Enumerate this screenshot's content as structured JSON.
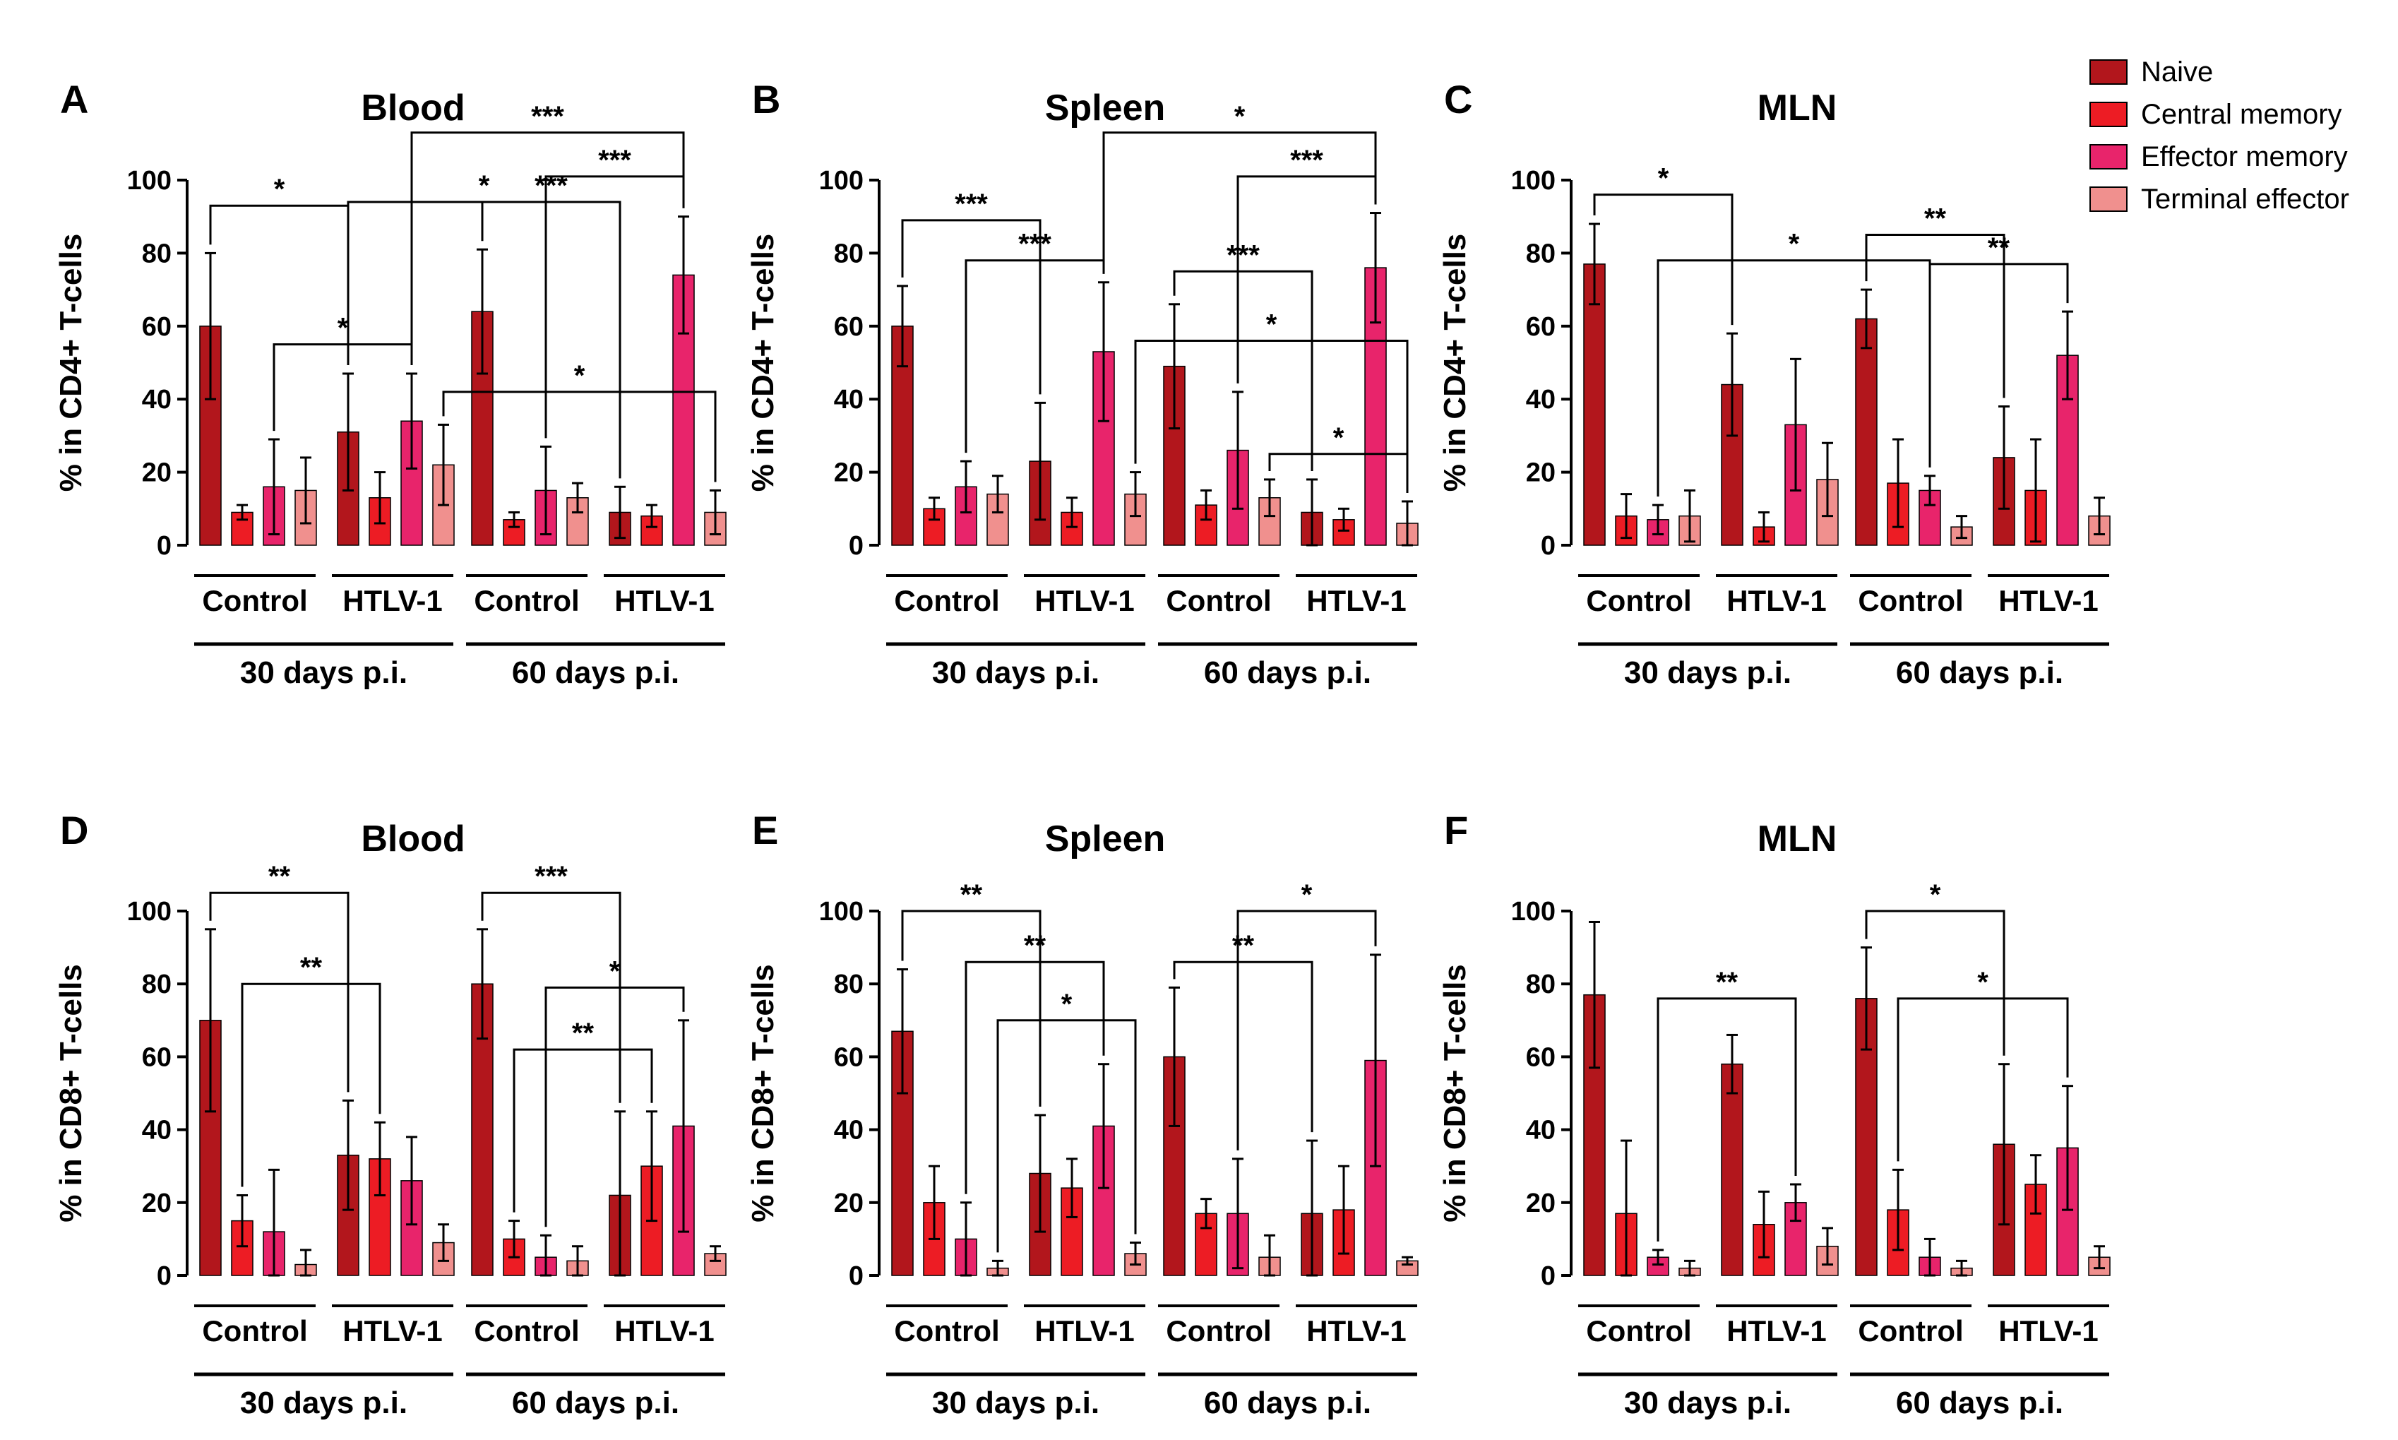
{
  "colors": {
    "naive": "#B2161C",
    "central_memory": "#ED1C24",
    "effector_memory": "#E8246B",
    "terminal_effector": "#F0908E",
    "text": "#000000"
  },
  "legend": [
    {
      "label": "Naive",
      "color": "#B2161C"
    },
    {
      "label": "Central memory",
      "color": "#ED1C24"
    },
    {
      "label": "Effector memory",
      "color": "#E8246B"
    },
    {
      "label": "Terminal effector",
      "color": "#F0908E"
    }
  ],
  "chart_data": [
    {
      "type": "bar",
      "panel": "A",
      "title": "Blood",
      "ylabel": "% in CD4+ T-cells",
      "ylim": [
        0,
        100
      ],
      "yticks": [
        "0",
        "20",
        "40",
        "60",
        "80",
        "100"
      ],
      "groups": [
        "Control",
        "HTLV-1",
        "Control",
        "HTLV-1"
      ],
      "timepoints": [
        "30 days p.i.",
        "60 days p.i."
      ],
      "series": [
        {
          "name": "Naive",
          "values": [
            60,
            31,
            64,
            9
          ],
          "errors": [
            20,
            16,
            17,
            7
          ]
        },
        {
          "name": "Central memory",
          "values": [
            9,
            13,
            7,
            8
          ],
          "errors": [
            2,
            7,
            2,
            3
          ]
        },
        {
          "name": "Effector memory",
          "values": [
            16,
            34,
            15,
            74
          ],
          "errors": [
            13,
            13,
            12,
            16
          ]
        },
        {
          "name": "Terminal effector",
          "values": [
            15,
            22,
            13,
            9
          ],
          "errors": [
            9,
            11,
            4,
            6
          ]
        }
      ],
      "significance": [
        {
          "label": "*",
          "from": [
            0,
            0
          ],
          "to": [
            1,
            0
          ],
          "y": 93
        },
        {
          "label": "*",
          "from": [
            0,
            2
          ],
          "to": [
            1,
            2
          ],
          "y": 55
        },
        {
          "label": "*",
          "from": [
            1,
            0
          ],
          "to": [
            3,
            0
          ],
          "y": 94
        },
        {
          "label": "*",
          "from": [
            1,
            3
          ],
          "to": [
            3,
            3
          ],
          "y": 42
        },
        {
          "label": "***",
          "from": [
            1,
            2
          ],
          "to": [
            3,
            2
          ],
          "y": 113
        },
        {
          "label": "***",
          "from": [
            2,
            0
          ],
          "to": [
            3,
            0
          ],
          "y": 94
        },
        {
          "label": "***",
          "from": [
            2,
            2
          ],
          "to": [
            3,
            2
          ],
          "y": 101
        }
      ]
    },
    {
      "type": "bar",
      "panel": "B",
      "title": "Spleen",
      "ylabel": "% in CD4+ T-cells",
      "ylim": [
        0,
        100
      ],
      "yticks": [
        "0",
        "20",
        "40",
        "60",
        "80",
        "100"
      ],
      "groups": [
        "Control",
        "HTLV-1",
        "Control",
        "HTLV-1"
      ],
      "timepoints": [
        "30 days p.i.",
        "60 days p.i."
      ],
      "series": [
        {
          "name": "Naive",
          "values": [
            60,
            23,
            49,
            9
          ],
          "errors": [
            11,
            16,
            17,
            9
          ]
        },
        {
          "name": "Central memory",
          "values": [
            10,
            9,
            11,
            7
          ],
          "errors": [
            3,
            4,
            4,
            3
          ]
        },
        {
          "name": "Effector memory",
          "values": [
            16,
            53,
            26,
            76
          ],
          "errors": [
            7,
            19,
            16,
            15
          ]
        },
        {
          "name": "Terminal effector",
          "values": [
            14,
            14,
            13,
            6
          ],
          "errors": [
            5,
            6,
            5,
            6
          ]
        }
      ],
      "significance": [
        {
          "label": "***",
          "from": [
            0,
            0
          ],
          "to": [
            1,
            0
          ],
          "y": 89
        },
        {
          "label": "***",
          "from": [
            0,
            2
          ],
          "to": [
            1,
            2
          ],
          "y": 78
        },
        {
          "label": "*",
          "from": [
            1,
            2
          ],
          "to": [
            3,
            2
          ],
          "y": 113
        },
        {
          "label": "*",
          "from": [
            1,
            3
          ],
          "to": [
            3,
            3
          ],
          "y": 56
        },
        {
          "label": "***",
          "from": [
            2,
            0
          ],
          "to": [
            3,
            0
          ],
          "y": 75
        },
        {
          "label": "***",
          "from": [
            2,
            2
          ],
          "to": [
            3,
            2
          ],
          "y": 101
        },
        {
          "label": "*",
          "from": [
            2,
            3
          ],
          "to": [
            3,
            3
          ],
          "y": 25
        }
      ]
    },
    {
      "type": "bar",
      "panel": "C",
      "title": "MLN",
      "ylabel": "% in CD4+ T-cells",
      "ylim": [
        0,
        100
      ],
      "yticks": [
        "0",
        "20",
        "40",
        "60",
        "80",
        "100"
      ],
      "groups": [
        "Control",
        "HTLV-1",
        "Control",
        "HTLV-1"
      ],
      "timepoints": [
        "30 days p.i.",
        "60 days p.i."
      ],
      "series": [
        {
          "name": "Naive",
          "values": [
            77,
            44,
            62,
            24
          ],
          "errors": [
            11,
            14,
            8,
            14
          ]
        },
        {
          "name": "Central memory",
          "values": [
            8,
            5,
            17,
            15
          ],
          "errors": [
            6,
            4,
            12,
            14
          ]
        },
        {
          "name": "Effector memory",
          "values": [
            7,
            33,
            15,
            52
          ],
          "errors": [
            4,
            18,
            4,
            12
          ]
        },
        {
          "name": "Terminal effector",
          "values": [
            8,
            18,
            5,
            8
          ],
          "errors": [
            7,
            10,
            3,
            5
          ]
        }
      ],
      "significance": [
        {
          "label": "*",
          "from": [
            0,
            0
          ],
          "to": [
            1,
            0
          ],
          "y": 96
        },
        {
          "label": "*",
          "from": [
            0,
            2
          ],
          "to": [
            2,
            2
          ],
          "y": 78
        },
        {
          "label": "**",
          "from": [
            2,
            0
          ],
          "to": [
            3,
            0
          ],
          "y": 85
        },
        {
          "label": "**",
          "from": [
            2,
            2
          ],
          "to": [
            3,
            2
          ],
          "y": 77
        }
      ]
    },
    {
      "type": "bar",
      "panel": "D",
      "title": "Blood",
      "ylabel": "% in CD8+ T-cells",
      "ylim": [
        0,
        100
      ],
      "yticks": [
        "0",
        "20",
        "40",
        "60",
        "80",
        "100"
      ],
      "groups": [
        "Control",
        "HTLV-1",
        "Control",
        "HTLV-1"
      ],
      "timepoints": [
        "30 days p.i.",
        "60 days p.i."
      ],
      "series": [
        {
          "name": "Naive",
          "values": [
            70,
            33,
            80,
            22
          ],
          "errors": [
            25,
            15,
            15,
            23
          ]
        },
        {
          "name": "Central memory",
          "values": [
            15,
            32,
            10,
            30
          ],
          "errors": [
            7,
            10,
            5,
            15
          ]
        },
        {
          "name": "Effector memory",
          "values": [
            12,
            26,
            5,
            41
          ],
          "errors": [
            17,
            12,
            6,
            29
          ]
        },
        {
          "name": "Terminal effector",
          "values": [
            3,
            9,
            4,
            6
          ],
          "errors": [
            4,
            5,
            4,
            2
          ]
        }
      ],
      "significance": [
        {
          "label": "**",
          "from": [
            0,
            0
          ],
          "to": [
            1,
            0
          ],
          "y": 105
        },
        {
          "label": "**",
          "from": [
            0,
            1
          ],
          "to": [
            1,
            1
          ],
          "y": 80
        },
        {
          "label": "***",
          "from": [
            2,
            0
          ],
          "to": [
            3,
            0
          ],
          "y": 105
        },
        {
          "label": "**",
          "from": [
            2,
            1
          ],
          "to": [
            3,
            1
          ],
          "y": 62
        },
        {
          "label": "*",
          "from": [
            2,
            2
          ],
          "to": [
            3,
            2
          ],
          "y": 79
        }
      ]
    },
    {
      "type": "bar",
      "panel": "E",
      "title": "Spleen",
      "ylabel": "% in CD8+ T-cells",
      "ylim": [
        0,
        100
      ],
      "yticks": [
        "0",
        "20",
        "40",
        "60",
        "80",
        "100"
      ],
      "groups": [
        "Control",
        "HTLV-1",
        "Control",
        "HTLV-1"
      ],
      "timepoints": [
        "30 days p.i.",
        "60 days p.i."
      ],
      "series": [
        {
          "name": "Naive",
          "values": [
            67,
            28,
            60,
            17
          ],
          "errors": [
            17,
            16,
            19,
            20
          ]
        },
        {
          "name": "Central memory",
          "values": [
            20,
            24,
            17,
            18
          ],
          "errors": [
            10,
            8,
            4,
            12
          ]
        },
        {
          "name": "Effector memory",
          "values": [
            10,
            41,
            17,
            59
          ],
          "errors": [
            10,
            17,
            15,
            29
          ]
        },
        {
          "name": "Terminal effector",
          "values": [
            2,
            6,
            5,
            4
          ],
          "errors": [
            2,
            3,
            6,
            1
          ]
        }
      ],
      "significance": [
        {
          "label": "**",
          "from": [
            0,
            0
          ],
          "to": [
            1,
            0
          ],
          "y": 100
        },
        {
          "label": "**",
          "from": [
            0,
            2
          ],
          "to": [
            1,
            2
          ],
          "y": 86
        },
        {
          "label": "*",
          "from": [
            0,
            3
          ],
          "to": [
            1,
            3
          ],
          "y": 70
        },
        {
          "label": "**",
          "from": [
            2,
            0
          ],
          "to": [
            3,
            0
          ],
          "y": 86
        },
        {
          "label": "*",
          "from": [
            2,
            2
          ],
          "to": [
            3,
            2
          ],
          "y": 100
        }
      ]
    },
    {
      "type": "bar",
      "panel": "F",
      "title": "MLN",
      "ylabel": "% in CD8+ T-cells",
      "ylim": [
        0,
        100
      ],
      "yticks": [
        "0",
        "20",
        "40",
        "60",
        "80",
        "100"
      ],
      "groups": [
        "Control",
        "HTLV-1",
        "Control",
        "HTLV-1"
      ],
      "timepoints": [
        "30 days p.i.",
        "60 days p.i."
      ],
      "series": [
        {
          "name": "Naive",
          "values": [
            77,
            58,
            76,
            36
          ],
          "errors": [
            20,
            8,
            14,
            22
          ]
        },
        {
          "name": "Central memory",
          "values": [
            17,
            14,
            18,
            25
          ],
          "errors": [
            20,
            9,
            11,
            8
          ]
        },
        {
          "name": "Effector memory",
          "values": [
            5,
            20,
            5,
            35
          ],
          "errors": [
            2,
            5,
            5,
            17
          ]
        },
        {
          "name": "Terminal effector",
          "values": [
            2,
            8,
            2,
            5
          ],
          "errors": [
            2,
            5,
            2,
            3
          ]
        }
      ],
      "significance": [
        {
          "label": "**",
          "from": [
            0,
            2
          ],
          "to": [
            1,
            2
          ],
          "y": 76
        },
        {
          "label": "*",
          "from": [
            2,
            0
          ],
          "to": [
            3,
            0
          ],
          "y": 100
        },
        {
          "label": "*",
          "from": [
            2,
            1
          ],
          "to": [
            3,
            2
          ],
          "y": 76
        }
      ]
    }
  ]
}
